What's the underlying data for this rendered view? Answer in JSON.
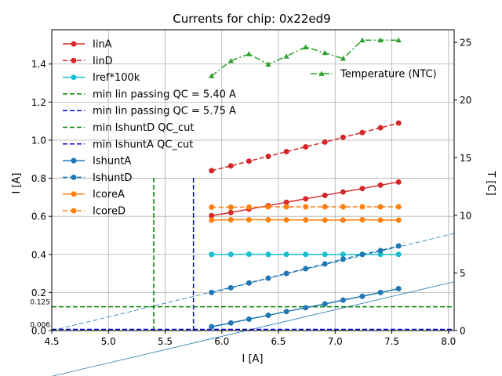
{
  "chart_data": {
    "type": "line",
    "title": "Currents for chip: 0x22ed9",
    "xlabel": "I [A]",
    "ylabel": "I [A]",
    "y2label": "T [C]",
    "xlim": [
      4.5,
      8.05
    ],
    "ylim": [
      0.0,
      1.58
    ],
    "y2lim": [
      0,
      26.1
    ],
    "grid": true,
    "xticks": [
      "4.5",
      "5.0",
      "5.5",
      "6.0",
      "6.5",
      "7.0",
      "7.5",
      "8.0"
    ],
    "yticks": [
      "0.0",
      "0.2",
      "0.4",
      "0.6",
      "0.8",
      "1.0",
      "1.2",
      "1.4"
    ],
    "y2ticks": [
      "0",
      "5",
      "10",
      "15",
      "20",
      "25"
    ],
    "x": [
      5.91,
      6.08,
      6.24,
      6.41,
      6.57,
      6.74,
      6.91,
      7.07,
      7.24,
      7.4,
      7.56
    ],
    "series": [
      {
        "name": "IinA",
        "color": "#d62728",
        "dash": "solid",
        "marker": "circle",
        "values": [
          0.604,
          0.62,
          0.638,
          0.656,
          0.674,
          0.692,
          0.71,
          0.728,
          0.746,
          0.764,
          0.78
        ]
      },
      {
        "name": "IinD",
        "color": "#d62728",
        "dash": "dashed",
        "marker": "circle",
        "values": [
          0.84,
          0.865,
          0.89,
          0.915,
          0.94,
          0.965,
          0.99,
          1.015,
          1.04,
          1.065,
          1.09
        ]
      },
      {
        "name": "Iref*100k",
        "color": "#17becf",
        "dash": "solid",
        "marker": "circle",
        "values": [
          0.4,
          0.4,
          0.401,
          0.4,
          0.4,
          0.4,
          0.4,
          0.4,
          0.4,
          0.4,
          0.4
        ]
      },
      {
        "name": "IshuntA",
        "color": "#1f77b4",
        "dash": "solid",
        "marker": "circle",
        "values": [
          0.02,
          0.04,
          0.06,
          0.08,
          0.1,
          0.12,
          0.14,
          0.16,
          0.18,
          0.2,
          0.22
        ]
      },
      {
        "name": "IshuntD",
        "color": "#1f77b4",
        "dash": "dashed",
        "marker": "circle",
        "values": [
          0.2,
          0.225,
          0.25,
          0.275,
          0.3,
          0.325,
          0.35,
          0.375,
          0.4,
          0.42,
          0.445
        ]
      },
      {
        "name": "IcoreA",
        "color": "#ff7f0e",
        "dash": "solid",
        "marker": "circle",
        "values": [
          0.58,
          0.582,
          0.582,
          0.582,
          0.581,
          0.581,
          0.58,
          0.58,
          0.582,
          0.58,
          0.58
        ]
      },
      {
        "name": "IcoreD",
        "color": "#ff7f0e",
        "dash": "dashed",
        "marker": "circle",
        "values": [
          0.648,
          0.648,
          0.648,
          0.65,
          0.65,
          0.65,
          0.65,
          0.65,
          0.65,
          0.65,
          0.65
        ]
      }
    ],
    "temperature": {
      "name": "Temperature (NTC)",
      "color": "#2ca02c",
      "dash": "dashdot",
      "marker": "triangle",
      "axis": "right",
      "values": [
        22.1,
        23.4,
        24.0,
        23.1,
        23.8,
        24.6,
        24.1,
        23.6,
        25.2,
        25.2,
        25.2
      ]
    },
    "thresholds": [
      {
        "name": "min Iin passing QC = 5.40 A",
        "orientation": "vertical",
        "x": 5.4,
        "y_from": 0,
        "y_to": 0.81,
        "color": "#008000"
      },
      {
        "name": "min Iin passing QC = 5.75 A",
        "orientation": "vertical",
        "x": 5.75,
        "y_from": 0,
        "y_to": 0.81,
        "color": "#0000cd"
      },
      {
        "name": "min IshuntD QC_cut",
        "orientation": "horizontal",
        "y": 0.125,
        "color": "#008000"
      },
      {
        "name": "min IshuntA QC_cut",
        "orientation": "horizontal",
        "y": 0.006,
        "color": "#0000cd"
      }
    ],
    "threshold_labels": [
      "0.125",
      "0.006"
    ],
    "fit_lines": [
      {
        "for": "IshuntA",
        "color": "#1f77b4",
        "dash": "solid",
        "x": [
          4.5,
          8.05
        ],
        "y": [
          -0.24,
          0.256
        ]
      },
      {
        "for": "IshuntD",
        "color": "#1f77b4",
        "dash": "dashed",
        "x": [
          4.5,
          8.05
        ],
        "y": [
          0.0,
          0.51
        ]
      }
    ],
    "legend_main": {
      "position": "upper-left",
      "entries": [
        "IinA",
        "IinD",
        "Iref*100k",
        "min Iin passing QC = 5.40 A",
        "min Iin passing QC = 5.75 A",
        "min IshuntD QC_cut",
        "min IshuntA QC_cut",
        "IshuntA",
        "IshuntD",
        "IcoreA",
        "IcoreD"
      ]
    },
    "legend_right": {
      "position": "upper-right",
      "entries": [
        "Temperature (NTC)"
      ]
    }
  },
  "legend_styles": {
    "IinA": {
      "color": "#d62728",
      "dash": "solid",
      "marker": "circle"
    },
    "IinD": {
      "color": "#d62728",
      "dash": "dashed",
      "marker": "circle"
    },
    "Iref*100k": {
      "color": "#17becf",
      "dash": "solid",
      "marker": "circle"
    },
    "min Iin passing QC = 5.40 A": {
      "color": "#008000",
      "dash": "dashed",
      "marker": "none"
    },
    "min Iin passing QC = 5.75 A": {
      "color": "#0000cd",
      "dash": "dashed",
      "marker": "none"
    },
    "min IshuntD QC_cut": {
      "color": "#008000",
      "dash": "dashed",
      "marker": "none"
    },
    "min IshuntA QC_cut": {
      "color": "#0000cd",
      "dash": "dashed",
      "marker": "none"
    },
    "IshuntA": {
      "color": "#1f77b4",
      "dash": "solid",
      "marker": "circle"
    },
    "IshuntD": {
      "color": "#1f77b4",
      "dash": "dashed",
      "marker": "circle"
    },
    "IcoreA": {
      "color": "#ff7f0e",
      "dash": "solid",
      "marker": "circle"
    },
    "IcoreD": {
      "color": "#ff7f0e",
      "dash": "dashed",
      "marker": "circle"
    },
    "Temperature (NTC)": {
      "color": "#2ca02c",
      "dash": "dashdot",
      "marker": "triangle"
    }
  }
}
